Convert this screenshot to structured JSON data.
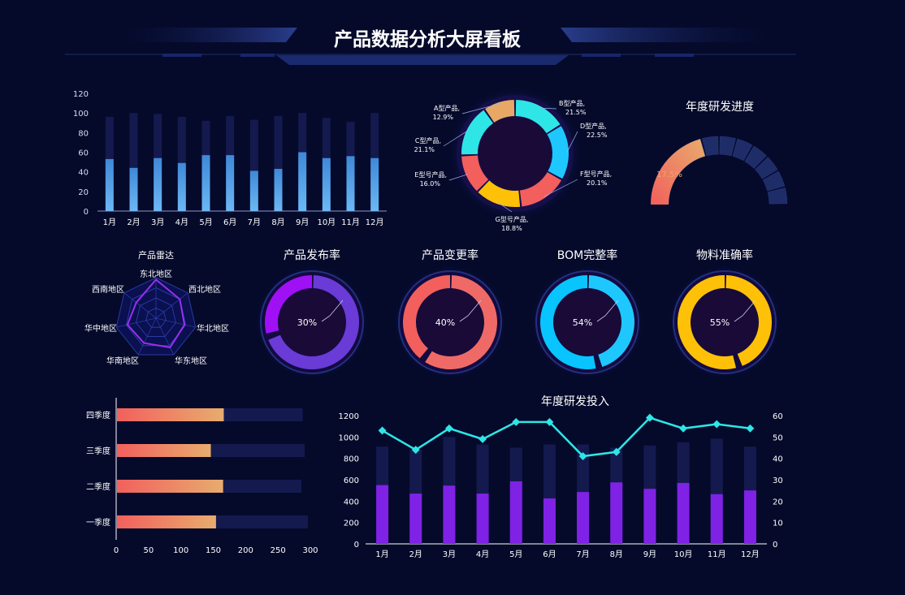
{
  "header": {
    "title": "产品数据分析大屏看板"
  },
  "colors": {
    "background": "#050a2b",
    "bar_light": "#5aa9ee",
    "bar_track": "#141a4e",
    "purple": "#7f22e6",
    "cyan": "#2ee6e6",
    "red": "#f25f5c",
    "orange": "#e8a865",
    "blue": "#1ec8ff",
    "yellow": "#ffc107"
  },
  "chart_data": [
    {
      "id": "monthly-bars",
      "type": "bar",
      "categories": [
        "1月",
        "2月",
        "3月",
        "4月",
        "5月",
        "6月",
        "7月",
        "8月",
        "9月",
        "10月",
        "11月",
        "12月"
      ],
      "series": [
        {
          "values": [
            96,
            100,
            99,
            96,
            92,
            97,
            93,
            97,
            100,
            95,
            91,
            100
          ]
        },
        {
          "values": [
            53,
            44,
            54,
            49,
            57,
            57,
            41,
            43,
            60,
            54,
            56,
            54
          ]
        }
      ],
      "yticks": [
        "0",
        "20",
        "40",
        "60",
        "80",
        "100",
        "120"
      ],
      "ylim": [
        0,
        120
      ]
    },
    {
      "id": "product-donut",
      "type": "pie",
      "slices": [
        {
          "name": "B型产品",
          "label": "B型产品,",
          "pct_label": "21.5%",
          "value": 21.5,
          "color": "#2ee6e6"
        },
        {
          "name": "D型产品",
          "label": "D型产品,",
          "pct_label": "22.5%",
          "value": 22.5,
          "color": "#1ec8ff"
        },
        {
          "name": "F型号产品",
          "label": "F型号产品,",
          "pct_label": "20.1%",
          "value": 20.1,
          "color": "#f25f5c"
        },
        {
          "name": "G型号产品",
          "label": "G型号产品,",
          "pct_label": "18.8%",
          "value": 18.8,
          "color": "#ffc107"
        },
        {
          "name": "E型号产品",
          "label": "E型号产品,",
          "pct_label": "16.0%",
          "value": 16.0,
          "color": "#f25f5c"
        },
        {
          "name": "C型产品",
          "label": "C型产品,",
          "pct_label": "21.1%",
          "value": 21.1,
          "color": "#2ee6e6"
        },
        {
          "name": "A型产品",
          "label": "A型产品,",
          "pct_label": "12.9%",
          "value": 12.9,
          "color": "#e8a865"
        }
      ]
    },
    {
      "id": "rd-progress-gauge",
      "type": "gauge",
      "title": "年度研发进度",
      "value_label": "17.5%",
      "value": 0.175
    },
    {
      "id": "product-radar",
      "type": "radar",
      "title": "产品雷达",
      "axes": [
        "东北地区",
        "西北地区",
        "华北地区",
        "华东地区",
        "华南地区",
        "华中地区",
        "西南地区"
      ],
      "values": [
        0.95,
        0.75,
        0.72,
        0.8,
        0.68,
        0.72,
        0.62
      ]
    },
    {
      "id": "rate-rings",
      "type": "pie",
      "items": [
        {
          "title": "产品发布率",
          "label": "30%",
          "value": 0.3,
          "color": "#a010f5",
          "color2": "#6a3bd6"
        },
        {
          "title": "产品变更率",
          "label": "40%",
          "value": 0.4,
          "color": "#f25f5c",
          "color2": "#ef6a66"
        },
        {
          "title": "BOM完整率",
          "label": "54%",
          "value": 0.54,
          "color": "#08c4ff",
          "color2": "#1ec8ff"
        },
        {
          "title": "物料准确率",
          "label": "55%",
          "value": 0.55,
          "color": "#ffc107",
          "color2": "#ffc107"
        }
      ]
    },
    {
      "id": "quarter-hbar",
      "type": "bar",
      "orientation": "horizontal",
      "categories": [
        "四季度",
        "三季度",
        "二季度",
        "一季度"
      ],
      "values": [
        165,
        145,
        164,
        153
      ],
      "track": [
        287,
        290,
        285,
        295
      ],
      "xticks": [
        "0",
        "50",
        "100",
        "150",
        "200",
        "250",
        "300"
      ],
      "xlim": [
        0,
        300
      ]
    },
    {
      "id": "annual-rd-investment",
      "type": "bar",
      "title": "年度研发投入",
      "categories": [
        "1月",
        "2月",
        "3月",
        "4月",
        "5月",
        "6月",
        "7月",
        "8月",
        "9月",
        "10月",
        "11月",
        "12月"
      ],
      "series": [
        {
          "values": [
            910,
            880,
            1000,
            930,
            900,
            930,
            930,
            900,
            920,
            950,
            985,
            910
          ]
        },
        {
          "values": [
            550,
            470,
            545,
            470,
            585,
            425,
            485,
            575,
            515,
            570,
            465,
            500
          ]
        },
        {
          "values": [
            53,
            44,
            54,
            49,
            57,
            57,
            41,
            43,
            59,
            54,
            56,
            54
          ]
        }
      ],
      "yticks_left": [
        "0",
        "200",
        "400",
        "600",
        "800",
        "1000",
        "1200"
      ],
      "yticks_right": [
        "0",
        "10",
        "20",
        "30",
        "40",
        "50",
        "60"
      ],
      "ylim_left": [
        0,
        1200
      ],
      "ylim_right": [
        0,
        60
      ]
    }
  ]
}
